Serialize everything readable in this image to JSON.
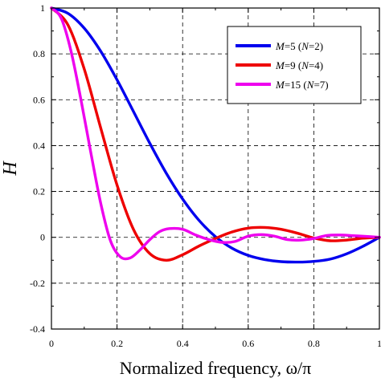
{
  "chart_data": {
    "type": "line",
    "title": "",
    "xlabel": "Normalized frequency, ω/π",
    "ylabel": "H",
    "xlim": [
      0,
      1
    ],
    "ylim": [
      -0.4,
      1
    ],
    "xticks": [
      "0",
      "0.2",
      "0.4",
      "0.6",
      "0.8",
      "1"
    ],
    "yticks": [
      "-0.4",
      "-0.2",
      "0",
      "0.2",
      "0.4",
      "0.6",
      "0.8",
      "1"
    ],
    "grid": true,
    "legend_position": "top-right",
    "series": [
      {
        "name": "M=5 (N=2)",
        "legend_parts": [
          {
            "t": "M",
            "i": true
          },
          {
            "t": "=5 (",
            "i": false
          },
          {
            "t": "N",
            "i": true
          },
          {
            "t": "=2)",
            "i": false
          }
        ],
        "color": "#0000ee",
        "x": [
          0,
          0.05,
          0.1,
          0.15,
          0.2,
          0.25,
          0.3,
          0.35,
          0.4,
          0.45,
          0.5,
          0.55,
          0.6,
          0.65,
          0.7,
          0.75,
          0.8,
          0.85,
          0.9,
          0.95,
          1
        ],
        "y": [
          1,
          0.977,
          0.912,
          0.812,
          0.687,
          0.549,
          0.41,
          0.28,
          0.167,
          0.074,
          0.003,
          -0.047,
          -0.079,
          -0.097,
          -0.106,
          -0.108,
          -0.105,
          -0.095,
          -0.072,
          -0.039,
          0
        ]
      },
      {
        "name": "M=9 (N=4)",
        "legend_parts": [
          {
            "t": "M",
            "i": true
          },
          {
            "t": "=9 (",
            "i": false
          },
          {
            "t": "N",
            "i": true
          },
          {
            "t": "=4)",
            "i": false
          }
        ],
        "color": "#ee0000",
        "x": [
          0,
          0.05,
          0.1,
          0.15,
          0.2,
          0.25,
          0.3,
          0.35,
          0.4,
          0.45,
          0.5,
          0.55,
          0.6,
          0.65,
          0.7,
          0.75,
          0.8,
          0.85,
          0.9,
          0.95,
          1
        ],
        "y": [
          1,
          0.927,
          0.734,
          0.478,
          0.228,
          0.035,
          -0.071,
          -0.1,
          -0.076,
          -0.038,
          -0.005,
          0.023,
          0.04,
          0.043,
          0.035,
          0.018,
          -0.003,
          -0.015,
          -0.012,
          -0.004,
          0
        ]
      },
      {
        "name": "M=15 (N=7)",
        "legend_parts": [
          {
            "t": "M",
            "i": true
          },
          {
            "t": "=15 (",
            "i": false
          },
          {
            "t": "N",
            "i": true
          },
          {
            "t": "=7)",
            "i": false
          }
        ],
        "color": "#ee00ee",
        "x": [
          0,
          0.03,
          0.06,
          0.09,
          0.12,
          0.15,
          0.18,
          0.21,
          0.24,
          0.27,
          0.3,
          0.33,
          0.36,
          0.4,
          0.44,
          0.48,
          0.52,
          0.56,
          0.6,
          0.64,
          0.68,
          0.72,
          0.76,
          0.8,
          0.84,
          0.88,
          0.92,
          0.96,
          1
        ],
        "y": [
          1,
          0.955,
          0.81,
          0.6,
          0.37,
          0.15,
          -0.015,
          -0.085,
          -0.09,
          -0.055,
          -0.01,
          0.025,
          0.038,
          0.035,
          0.01,
          -0.01,
          -0.022,
          -0.018,
          0.005,
          0.012,
          0.005,
          -0.01,
          -0.012,
          -0.005,
          0.008,
          0.01,
          0.007,
          0.004,
          0
        ]
      }
    ]
  }
}
